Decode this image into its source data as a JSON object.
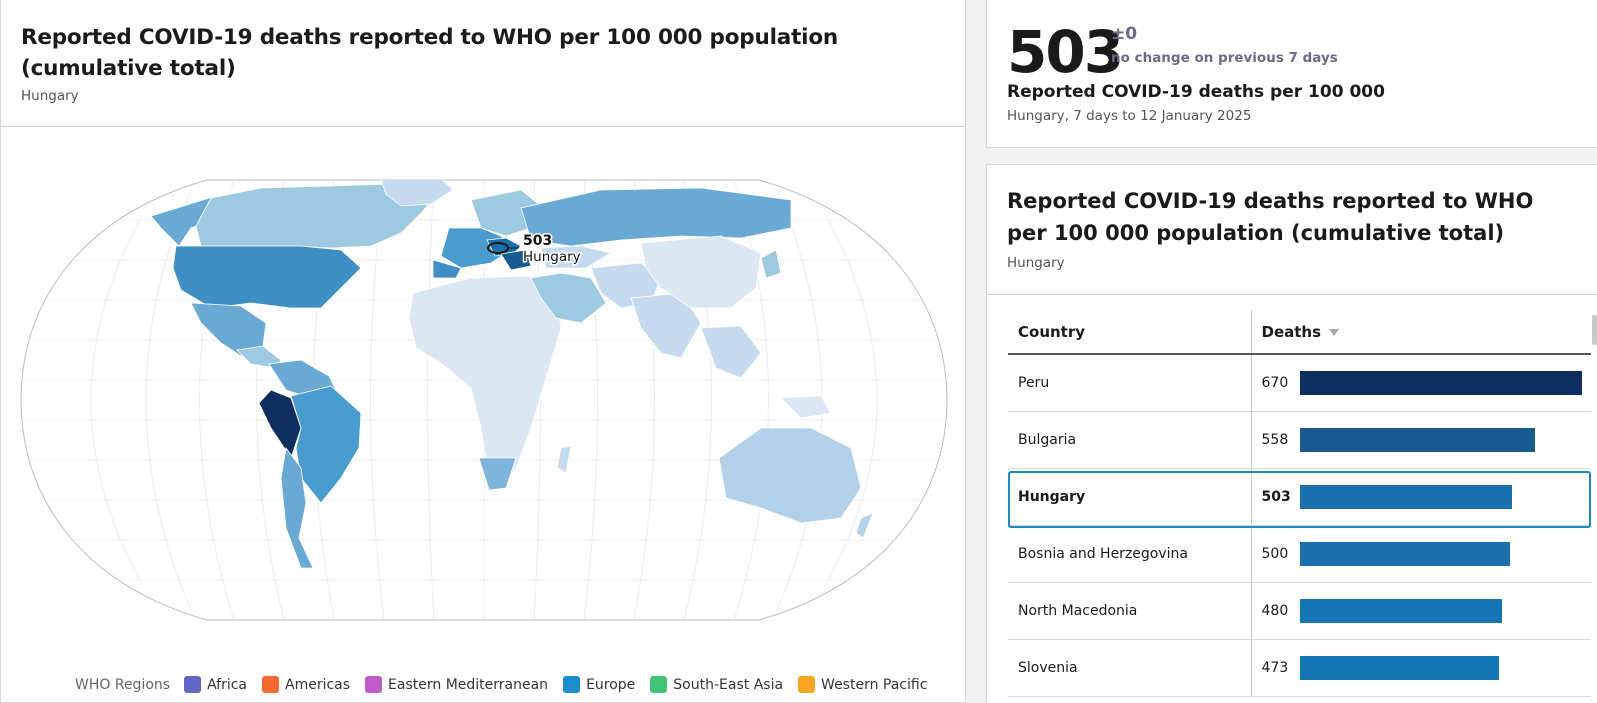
{
  "map_panel": {
    "title": "Reported COVID-19 deaths reported to WHO per 100 000 population (cumulative total)",
    "subtitle": "Hungary",
    "tooltip": {
      "value": "503",
      "country": "Hungary"
    },
    "legend": {
      "title": "WHO Regions",
      "items": [
        {
          "label": "Africa",
          "color": "#6466c4"
        },
        {
          "label": "Americas",
          "color": "#f26a2e"
        },
        {
          "label": "Eastern Mediterranean",
          "color": "#c05cc7"
        },
        {
          "label": "Europe",
          "color": "#1b8ccc"
        },
        {
          "label": "South-East Asia",
          "color": "#45c27a"
        },
        {
          "label": "Western Pacific",
          "color": "#f5a623"
        }
      ]
    }
  },
  "summary": {
    "value": "503",
    "delta": "±0",
    "delta_text": "no change on previous 7 days",
    "label": "Reported COVID-19 deaths per 100 000",
    "sub": "Hungary, 7 days to 12 January 2025"
  },
  "table_panel": {
    "title": "Reported COVID-19 deaths reported to WHO per 100 000 population (cumulative total)",
    "subtitle": "Hungary",
    "headers": {
      "country": "Country",
      "deaths": "Deaths"
    },
    "rows": [
      {
        "country": "Peru",
        "value": "670",
        "color": "#0f2d5e"
      },
      {
        "country": "Bulgaria",
        "value": "558",
        "color": "#175b91"
      },
      {
        "country": "Hungary",
        "value": "503",
        "color": "#1b6fac"
      },
      {
        "country": "Bosnia and Herzegovina",
        "value": "500",
        "color": "#1b6fac"
      },
      {
        "country": "North Macedonia",
        "value": "480",
        "color": "#1476b3"
      },
      {
        "country": "Slovenia",
        "value": "473",
        "color": "#1476b3"
      }
    ],
    "max": 670,
    "selected": "Hungary"
  }
}
